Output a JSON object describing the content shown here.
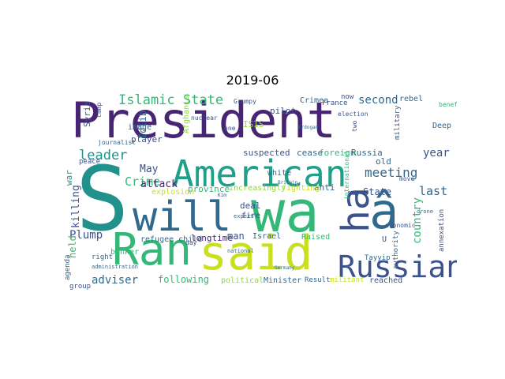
{
  "title": "2019-06",
  "palette": {
    "dark_purple": "#482474",
    "indigo": "#3b528b",
    "blue": "#31688e",
    "teal": "#21918c",
    "green": "#35b779",
    "lime": "#90d743",
    "yellow": "#c8e020"
  },
  "words": [
    {
      "text": "President",
      "color": "#482474"
    },
    {
      "text": "S",
      "color": "#21918c"
    },
    {
      "text": "wa",
      "color": "#35b779"
    },
    {
      "text": "will",
      "color": "#31688e"
    },
    {
      "text": "American",
      "color": "#1fa088"
    },
    {
      "text": "Ran",
      "color": "#35b779"
    },
    {
      "text": "said",
      "color": "#c8e020"
    },
    {
      "text": "ha",
      "color": "#3b528b"
    },
    {
      "text": "â",
      "color": "#31688e"
    },
    {
      "text": "Russian",
      "color": "#3b528b"
    },
    {
      "text": "Islamic State",
      "color": "#35b779"
    },
    {
      "text": "leader",
      "color": "#21918c"
    },
    {
      "text": "Crime",
      "color": "#35b779"
    },
    {
      "text": "May",
      "color": "#3b528b"
    },
    {
      "text": "attack",
      "color": "#482474"
    },
    {
      "text": "meeting",
      "color": "#31688e"
    },
    {
      "text": "year",
      "color": "#3b528b"
    },
    {
      "text": "last",
      "color": "#31688e"
    },
    {
      "text": "country",
      "color": "#35b779"
    },
    {
      "text": "second",
      "color": "#31688e"
    },
    {
      "text": "Plump",
      "color": "#3b528b"
    },
    {
      "text": "adviser",
      "color": "#31688e"
    },
    {
      "text": "following",
      "color": "#35b779"
    },
    {
      "text": "war",
      "color": "#21918c"
    },
    {
      "text": "killing",
      "color": "#3b528b"
    },
    {
      "text": "held",
      "color": "#35b779"
    },
    {
      "text": "State",
      "color": "#3b528b"
    },
    {
      "text": "Syria",
      "color": "#3b528b"
    },
    {
      "text": "Idlib",
      "color": "#31688e"
    },
    {
      "text": "Crimea",
      "color": "#31688e"
    },
    {
      "text": "pilot",
      "color": "#3b528b"
    },
    {
      "text": "ISIS",
      "color": "#90d743"
    },
    {
      "text": "Afghanistan",
      "color": "#90d743"
    },
    {
      "text": "player",
      "color": "#3b528b"
    },
    {
      "text": "image",
      "color": "#31688e"
    },
    {
      "text": "suspected",
      "color": "#3b528b"
    },
    {
      "text": "cease",
      "color": "#31688e"
    },
    {
      "text": "foreign",
      "color": "#35b779"
    },
    {
      "text": "Russia",
      "color": "#31688e"
    },
    {
      "text": "old",
      "color": "#31688e"
    },
    {
      "text": "white",
      "color": "#31688e"
    },
    {
      "text": "anti",
      "color": "#31688e"
    },
    {
      "text": "fighting",
      "color": "#c8e020"
    },
    {
      "text": "increasingly",
      "color": "#90d743"
    },
    {
      "text": "province",
      "color": "#35b779"
    },
    {
      "text": "explosion",
      "color": "#c8e020"
    },
    {
      "text": "deal",
      "color": "#3b528b"
    },
    {
      "text": "fire",
      "color": "#3b528b"
    },
    {
      "text": "refugee child",
      "color": "#31688e"
    },
    {
      "text": "longtime",
      "color": "#482474"
    },
    {
      "text": "man",
      "color": "#3b528b"
    },
    {
      "text": "Israel",
      "color": "#31688e"
    },
    {
      "text": "Raised",
      "color": "#35b779"
    },
    {
      "text": "banker",
      "color": "#35b779"
    },
    {
      "text": "political",
      "color": "#90d743"
    },
    {
      "text": "Minister",
      "color": "#31688e"
    },
    {
      "text": "Result",
      "color": "#31688e"
    },
    {
      "text": "militant",
      "color": "#c8e020"
    },
    {
      "text": "reached",
      "color": "#3b528b"
    },
    {
      "text": "Tayyip",
      "color": "#31688e"
    },
    {
      "text": "authority",
      "color": "#31688e"
    },
    {
      "text": "annexation",
      "color": "#3b528b"
    },
    {
      "text": "rebel",
      "color": "#31688e"
    },
    {
      "text": "Deep",
      "color": "#31688e"
    },
    {
      "text": "military",
      "color": "#3b528b"
    },
    {
      "text": "France",
      "color": "#3b528b"
    },
    {
      "text": "now",
      "color": "#3b528b"
    },
    {
      "text": "say",
      "color": "#3b528b"
    },
    {
      "text": "U",
      "color": "#3b528b"
    },
    {
      "text": "agenda",
      "color": "#31688e"
    },
    {
      "text": "group",
      "color": "#3b528b"
    },
    {
      "text": "right",
      "color": "#31688e"
    },
    {
      "text": "peace",
      "color": "#3b528b"
    },
    {
      "text": "journalist",
      "color": "#31688e"
    },
    {
      "text": "camp",
      "color": "#3b528b"
    },
    {
      "text": "benefit",
      "color": "#35b779"
    },
    {
      "text": "election",
      "color": "#3b528b"
    },
    {
      "text": "two",
      "color": "#3b528b"
    },
    {
      "text": "one",
      "color": "#3b528b"
    },
    {
      "text": "day",
      "color": "#3b528b"
    },
    {
      "text": "international",
      "color": "#35b779"
    },
    {
      "text": "economic",
      "color": "#3b528b"
    },
    {
      "text": "move",
      "color": "#3b528b"
    },
    {
      "text": "Grumpy",
      "color": "#3b528b"
    },
    {
      "text": "nuclear",
      "color": "#3b528b"
    },
    {
      "text": "expert",
      "color": "#31688e"
    },
    {
      "text": "national",
      "color": "#31688e"
    },
    {
      "text": "administration",
      "color": "#31688e"
    },
    {
      "text": "drone",
      "color": "#31688e"
    },
    {
      "text": "Britain",
      "color": "#31688e"
    },
    {
      "text": "Germany",
      "color": "#31688e"
    },
    {
      "text": "Erdogan",
      "color": "#31688e"
    },
    {
      "text": "Kim",
      "color": "#3b528b"
    }
  ]
}
